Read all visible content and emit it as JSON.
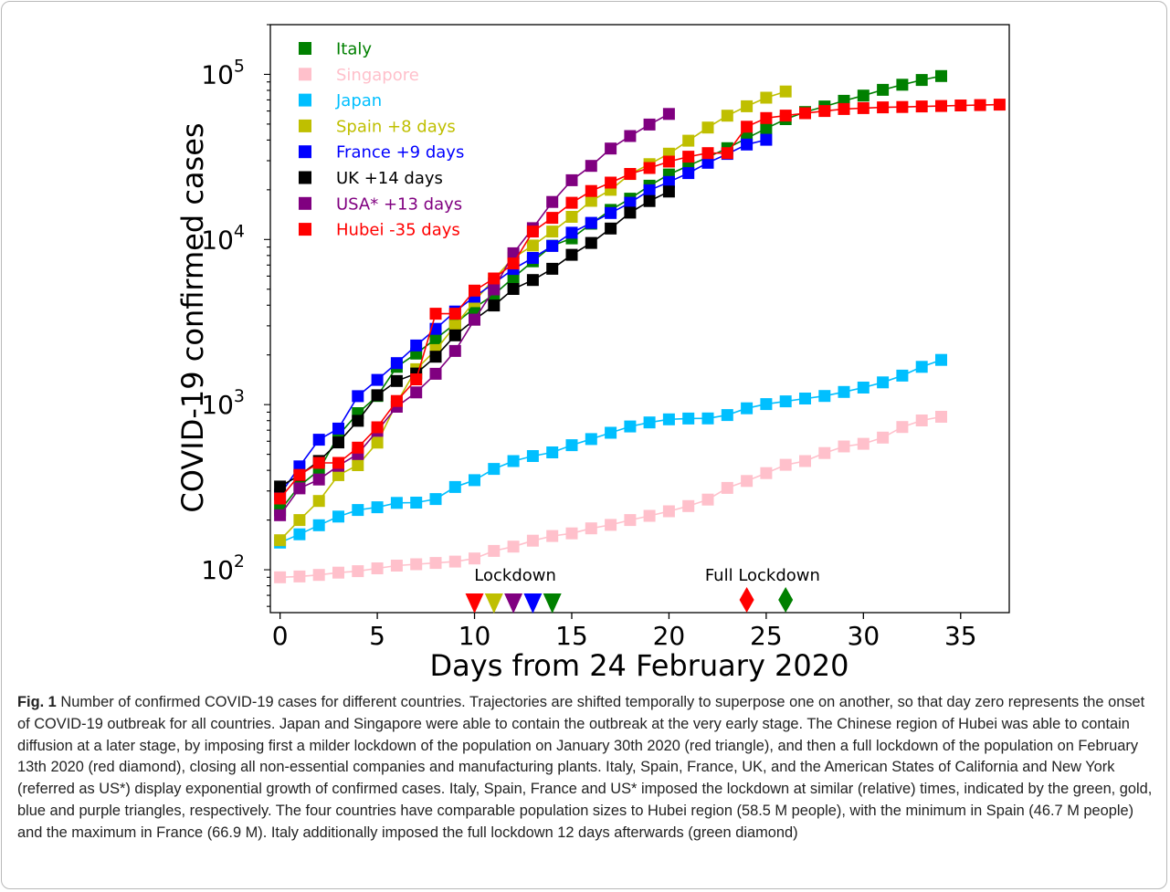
{
  "figure": {
    "caption_label": "Fig. 1",
    "caption_text": "Number of confirmed COVID-19 cases for different countries. Trajectories are shifted temporally to superpose one on another, so that day zero represents the onset of COVID-19 outbreak for all countries. Japan and Singapore were able to contain the outbreak at the very early stage. The Chinese region of Hubei was able to contain diffusion at a later stage, by imposing first a milder lockdown of the population on January 30th 2020 (red triangle), and then a full lockdown of the population on February 13th 2020 (red diamond), closing all non-essential companies and manufacturing plants. Italy, Spain, France, UK, and the American States of California and New York (referred as US*) display exponential growth of confirmed cases. Italy, Spain, France and US* imposed the lockdown at similar (relative) times, indicated by the green, gold, blue and purple triangles, respectively. The four countries have comparable population sizes to Hubei region (58.5 M people), with the minimum in Spain (46.7 M people) and the maximum in France (66.9 M). Italy additionally imposed the full lockdown 12 days afterwards (green diamond)"
  },
  "chart_data": {
    "type": "scatter",
    "title": "",
    "xlabel": "Days from 24 February 2020",
    "ylabel": "COVID-19 confirmed cases",
    "xlim": [
      -0.5,
      37.5
    ],
    "ylim": [
      55,
      200000
    ],
    "yscale": "log",
    "grid": false,
    "legend_position": "top-left",
    "x_ticks": [
      0,
      5,
      10,
      15,
      20,
      25,
      30,
      35
    ],
    "x_tick_labels": [
      "0",
      "5",
      "10",
      "15",
      "20",
      "25",
      "30",
      "35"
    ],
    "y_ticks": [
      100,
      1000,
      10000,
      100000
    ],
    "y_tick_labels": [
      {
        "base": "10",
        "exp": "2"
      },
      {
        "base": "10",
        "exp": "3"
      },
      {
        "base": "10",
        "exp": "4"
      },
      {
        "base": "10",
        "exp": "5"
      }
    ],
    "series": [
      {
        "name": "Italy",
        "color": "#008000",
        "x": [
          0,
          1,
          2,
          3,
          4,
          5,
          6,
          7,
          8,
          9,
          10,
          11,
          12,
          13,
          14,
          15,
          16,
          17,
          18,
          19,
          20,
          21,
          22,
          23,
          24,
          25,
          26,
          27,
          28,
          29,
          30,
          31,
          32,
          33,
          34
        ],
        "y": [
          229,
          322,
          400,
          650,
          888,
          1128,
          1694,
          2036,
          2502,
          3089,
          3858,
          4636,
          5883,
          7375,
          9172,
          10149,
          12462,
          15113,
          17660,
          21157,
          24747,
          27980,
          31506,
          35713,
          41035,
          47021,
          53578,
          59138,
          63927,
          69176,
          74386,
          80539,
          86498,
          92472,
          97689
        ]
      },
      {
        "name": "Singapore",
        "color": "#ffc0cb",
        "x": [
          0,
          1,
          2,
          3,
          4,
          5,
          6,
          7,
          8,
          9,
          10,
          11,
          12,
          13,
          14,
          15,
          16,
          17,
          18,
          19,
          20,
          21,
          22,
          23,
          24,
          25,
          26,
          27,
          28,
          29,
          30,
          31,
          32,
          33,
          34
        ],
        "y": [
          90,
          91,
          93,
          96,
          98,
          102,
          106,
          108,
          110,
          112,
          117,
          130,
          138,
          150,
          160,
          166,
          178,
          187,
          200,
          212,
          226,
          243,
          266,
          313,
          345,
          385,
          432,
          455,
          509,
          558,
          579,
          631,
          732,
          802,
          844
        ]
      },
      {
        "name": "Japan",
        "color": "#00bfff",
        "x": [
          0,
          1,
          2,
          3,
          4,
          5,
          6,
          7,
          8,
          9,
          10,
          11,
          12,
          13,
          14,
          15,
          16,
          17,
          18,
          19,
          20,
          21,
          22,
          23,
          24,
          25,
          26,
          27,
          28,
          29,
          30,
          31,
          32,
          33,
          34
        ],
        "y": [
          146,
          164,
          186,
          210,
          230,
          239,
          254,
          255,
          268,
          317,
          349,
          408,
          455,
          488,
          514,
          568,
          619,
          675,
          737,
          780,
          814,
          824,
          825,
          865,
          950,
          1007,
          1046,
          1089,
          1128,
          1193,
          1268,
          1364,
          1499,
          1693,
          1866
        ]
      },
      {
        "name": "Spain +8 days",
        "color": "#bfbf00",
        "x": [
          0,
          1,
          2,
          3,
          4,
          5,
          6,
          7,
          8,
          9,
          10,
          11,
          12,
          13,
          14,
          15,
          16,
          17,
          18,
          19,
          20,
          21,
          22,
          23,
          24,
          25,
          26
        ],
        "y": [
          151,
          200,
          261,
          374,
          430,
          589,
          1024,
          1639,
          2140,
          3004,
          4231,
          5753,
          7753,
          9191,
          11178,
          13716,
          17147,
          19980,
          24926,
          28572,
          33089,
          39673,
          47610,
          56188,
          64059,
          72248,
          78797
        ]
      },
      {
        "name": "France +9 days",
        "color": "#0000ff",
        "x": [
          0,
          1,
          2,
          3,
          4,
          5,
          6,
          7,
          8,
          9,
          10,
          11,
          12,
          13,
          14,
          15,
          16,
          17,
          18,
          19,
          20,
          21,
          22,
          23,
          24,
          25
        ],
        "y": [
          285,
          423,
          613,
          716,
          1126,
          1412,
          1784,
          2281,
          2876,
          3661,
          4499,
          5423,
          6633,
          7730,
          9134,
          10995,
          12612,
          14459,
          16689,
          19856,
          22302,
          25233,
          29155,
          32964,
          37575,
          40174
        ]
      },
      {
        "name": "UK +14 days",
        "color": "#000000",
        "x": [
          0,
          1,
          2,
          3,
          4,
          5,
          6,
          7,
          8,
          9,
          10,
          11,
          12,
          13,
          14,
          15,
          16,
          17,
          18,
          19,
          20
        ],
        "y": [
          319,
          373,
          456,
          590,
          798,
          1140,
          1391,
          1543,
          1950,
          2626,
          3269,
          3983,
          5018,
          5683,
          6650,
          8077,
          9529,
          11658,
          14543,
          17089,
          19522
        ]
      },
      {
        "name": "USA* +13 days",
        "color": "#800080",
        "x": [
          0,
          1,
          2,
          3,
          4,
          5,
          6,
          7,
          8,
          9,
          10,
          11,
          12,
          13,
          14,
          15,
          16,
          17,
          18,
          19,
          20
        ],
        "y": [
          214,
          311,
          352,
          426,
          502,
          694,
          971,
          1186,
          1537,
          2113,
          3270,
          4983,
          8248,
          11710,
          16887,
          22846,
          27906,
          35540,
          42316,
          49656,
          57556
        ]
      },
      {
        "name": "Hubei -35 days",
        "color": "#ff0000",
        "x": [
          0,
          1,
          2,
          3,
          4,
          5,
          6,
          7,
          8,
          9,
          10,
          11,
          12,
          13,
          14,
          15,
          16,
          17,
          18,
          19,
          20,
          21,
          22,
          23,
          24,
          25,
          26,
          27,
          28,
          29,
          30,
          31,
          32,
          33,
          34,
          35,
          36,
          37
        ],
        "y": [
          270,
          375,
          444,
          444,
          549,
          729,
          1052,
          1423,
          3554,
          3554,
          4903,
          5806,
          7153,
          11177,
          13522,
          16678,
          19665,
          22112,
          24953,
          27100,
          29631,
          31728,
          33366,
          33366,
          48206,
          54406,
          56249,
          58182,
          59989,
          61682,
          62457,
          63088,
          63454,
          63889,
          64287,
          64786,
          65187,
          65596
        ]
      }
    ],
    "markers": [
      {
        "group": "lockdown",
        "shape": "triangle",
        "x": 10,
        "color": "#ff0000"
      },
      {
        "group": "lockdown",
        "shape": "triangle",
        "x": 11,
        "color": "#bfbf00"
      },
      {
        "group": "lockdown",
        "shape": "triangle",
        "x": 12,
        "color": "#800080"
      },
      {
        "group": "lockdown",
        "shape": "triangle",
        "x": 13,
        "color": "#0000ff"
      },
      {
        "group": "lockdown",
        "shape": "triangle",
        "x": 14,
        "color": "#008000"
      },
      {
        "group": "full-lockdown",
        "shape": "diamond",
        "x": 24,
        "color": "#ff0000"
      },
      {
        "group": "full-lockdown",
        "shape": "diamond",
        "x": 26,
        "color": "#008000"
      }
    ],
    "annotations": [
      {
        "text": "Lockdown",
        "x": 12,
        "anchor": "lockdown"
      },
      {
        "text": "Full Lockdown",
        "x": 25,
        "anchor": "full-lockdown"
      }
    ]
  }
}
